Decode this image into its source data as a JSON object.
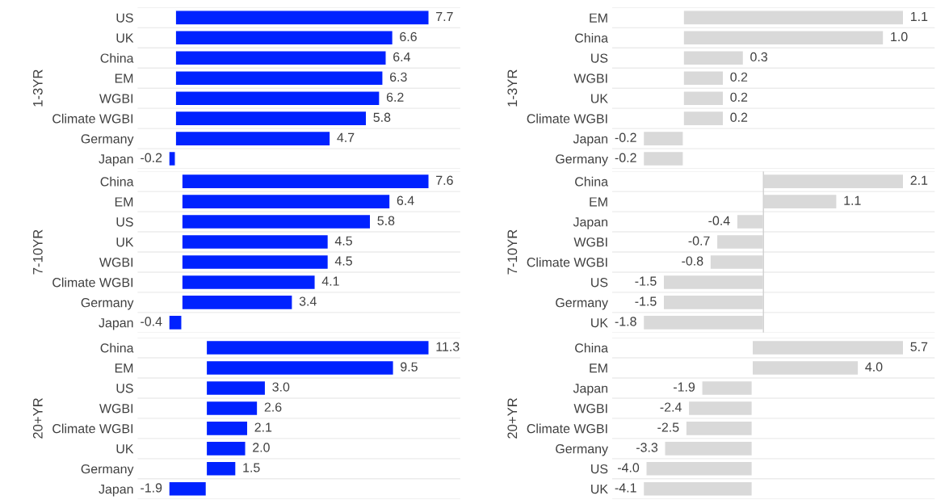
{
  "chart_data": [
    {
      "type": "bar",
      "orientation": "horizontal",
      "ylabel": "1-3YR",
      "categories": [
        "US",
        "UK",
        "China",
        "EM",
        "WGBI",
        "Climate WGBI",
        "Germany",
        "Japan"
      ],
      "values": [
        7.7,
        6.6,
        6.4,
        6.3,
        6.2,
        5.8,
        4.7,
        -0.2
      ],
      "value_labels": [
        "7.7",
        "6.6",
        "6.4",
        "6.3",
        "6.2",
        "5.8",
        "4.7",
        "-0.2"
      ],
      "color": "#0022ff",
      "grid": "y",
      "tick_labels": "y"
    },
    {
      "type": "bar",
      "orientation": "horizontal",
      "ylabel": "1-3YR",
      "categories": [
        "EM",
        "China",
        "US",
        "WGBI",
        "UK",
        "Climate WGBI",
        "Japan",
        "Germany"
      ],
      "values": [
        1.1,
        1.0,
        0.3,
        0.2,
        0.2,
        0.2,
        -0.2,
        -0.2
      ],
      "value_labels": [
        "1.1",
        "1.0",
        "0.3",
        "0.2",
        "0.2",
        "0.2",
        "-0.2",
        "-0.2"
      ],
      "color": "#d9d9d9",
      "grid": "y",
      "tick_labels": "y"
    },
    {
      "type": "bar",
      "orientation": "horizontal",
      "ylabel": "7-10YR",
      "categories": [
        "China",
        "EM",
        "US",
        "UK",
        "WGBI",
        "Climate WGBI",
        "Germany",
        "Japan"
      ],
      "values": [
        7.6,
        6.4,
        5.8,
        4.5,
        4.5,
        4.1,
        3.4,
        -0.4
      ],
      "value_labels": [
        "7.6",
        "6.4",
        "5.8",
        "4.5",
        "4.5",
        "4.1",
        "3.4",
        "-0.4"
      ],
      "color": "#0022ff",
      "grid": "y",
      "tick_labels": "y"
    },
    {
      "type": "bar",
      "orientation": "horizontal",
      "ylabel": "7-10YR",
      "categories": [
        "China",
        "EM",
        "Japan",
        "WGBI",
        "Climate WGBI",
        "US",
        "Germany",
        "UK"
      ],
      "values": [
        2.1,
        1.1,
        -0.4,
        -0.7,
        -0.8,
        -1.5,
        -1.5,
        -1.8
      ],
      "value_labels": [
        "2.1",
        "1.1",
        "-0.4",
        "-0.7",
        "-0.8",
        "-1.5",
        "-1.5",
        "-1.8"
      ],
      "color": "#d9d9d9",
      "grid": "y",
      "tick_labels": "y",
      "ref_lines": [
        {
          "axis": "x",
          "value": 0,
          "color": "#d0d0d0"
        }
      ]
    },
    {
      "type": "bar",
      "orientation": "horizontal",
      "ylabel": "20+YR",
      "categories": [
        "China",
        "EM",
        "US",
        "WGBI",
        "Climate WGBI",
        "UK",
        "Germany",
        "Japan"
      ],
      "values": [
        11.3,
        9.5,
        3.0,
        2.6,
        2.1,
        2.0,
        1.5,
        -1.9
      ],
      "value_labels": [
        "11.3",
        "9.5",
        "3.0",
        "2.6",
        "2.1",
        "2.0",
        "1.5",
        "-1.9"
      ],
      "color": "#0022ff",
      "grid": "y",
      "tick_labels": "y"
    },
    {
      "type": "bar",
      "orientation": "horizontal",
      "ylabel": "20+YR",
      "categories": [
        "China",
        "EM",
        "Japan",
        "WGBI",
        "Climate WGBI",
        "Germany",
        "US",
        "UK"
      ],
      "values": [
        5.7,
        4.0,
        -1.9,
        -2.4,
        -2.5,
        -3.3,
        -4.0,
        -4.1
      ],
      "value_labels": [
        "5.7",
        "4.0",
        "-1.9",
        "-2.4",
        "-2.5",
        "-3.3",
        "-4.0",
        "-4.1"
      ],
      "color": "#d9d9d9",
      "grid": "y",
      "tick_labels": "y"
    }
  ]
}
